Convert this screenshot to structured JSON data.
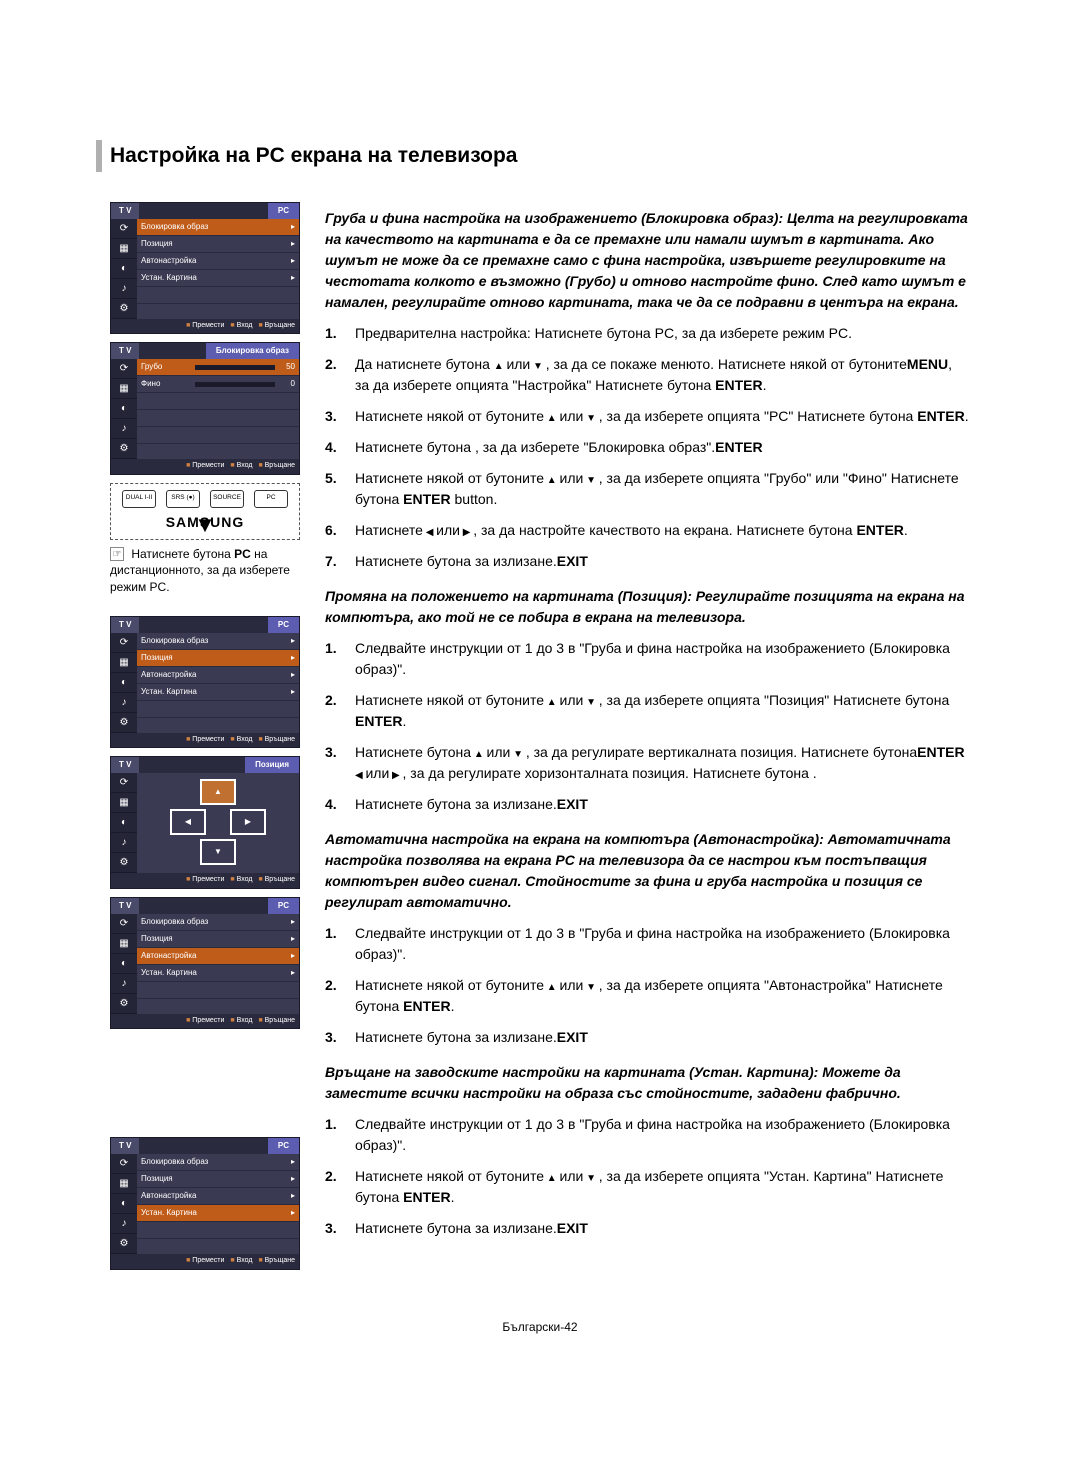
{
  "page": {
    "title": "Настройка на PC екрана на телевизора",
    "footer": "Български-42"
  },
  "tv_menu_common": {
    "tab_tv": "T V",
    "tab_pc": "PC",
    "tab_lock": "Блокировка образ",
    "tab_position": "Позиция",
    "footer_move": "Премести",
    "footer_enter": "Вход",
    "footer_return": "Връщане",
    "icons": [
      "⟳",
      "▦",
      "◐",
      "♪",
      "⚙"
    ]
  },
  "menu1_items": [
    {
      "label": "Блокировка образ",
      "sel": true
    },
    {
      "label": "Позиция",
      "sel": false
    },
    {
      "label": "Автонастройка",
      "sel": false
    },
    {
      "label": "Устан. Картина",
      "sel": false
    }
  ],
  "menu2_sliders": [
    {
      "label": "Грубо",
      "value": 50,
      "pct": 50,
      "sel": true
    },
    {
      "label": "Фино",
      "value": 0,
      "pct": 0,
      "sel": false
    }
  ],
  "menu3_items": [
    {
      "label": "Блокировка образ",
      "sel": false
    },
    {
      "label": "Позиция",
      "sel": true
    },
    {
      "label": "Автонастройка",
      "sel": false
    },
    {
      "label": "Устан. Картина",
      "sel": false
    }
  ],
  "menu5_items": [
    {
      "label": "Блокировка образ",
      "sel": false
    },
    {
      "label": "Позиция",
      "sel": false
    },
    {
      "label": "Автонастройка",
      "sel": true
    },
    {
      "label": "Устан. Картина",
      "sel": false
    }
  ],
  "menu6_items": [
    {
      "label": "Блокировка образ",
      "sel": false
    },
    {
      "label": "Позиция",
      "sel": false
    },
    {
      "label": "Автонастройка",
      "sel": false
    },
    {
      "label": "Устан. Картина",
      "sel": true
    }
  ],
  "remote": {
    "buttons_row1": [
      "DUAL I-II",
      "SRS (●)",
      "SOURCE",
      "PC"
    ],
    "arc_label": "О↕",
    "brand": "SAMSUNG",
    "caption_prefix": "Натиснете бутона ",
    "caption_bold": "PC",
    "caption_suffix": " на дистанционното, за да изберете режим  PC."
  },
  "section1": {
    "lead": "Груба и фина настройка на изображението (Блокировка образ): Целта на регулировката на качеството на картината е да се премахне или намали шумът в картината. Ако шумът не може да се премахне само с фина настройка, извършете регулировките на честотата колкото е възможно (Грубо) и отново настройте фино.  След като шумът е намален, регулирайте отново картината, така че да се подравни в центъра на екрана.",
    "steps": [
      {
        "pre": "Предварителна настройка: Натиснете бутона PC, за да изберете режим PC."
      },
      {
        "pre": "Да натиснете бутона ",
        "b1": "MENU",
        "mid": ", за да се покаже менюто. Натиснете някой от бутоните",
        "arrows": "ud",
        "post": ", за да изберете опцията \"Настройка\" Натиснете бутона ",
        "b2": "ENTER",
        "tail": "."
      },
      {
        "pre": "Натиснете някой от бутоните",
        "arrows": "ud",
        "mid": ", за да изберете опцията \"PC\" Натиснете бутона ",
        "b1": "ENTER",
        "tail": "."
      },
      {
        "pre": "Натиснете бутона ",
        "b1": "ENTER",
        "mid": " , за да изберете \"Блокировка образ\"."
      },
      {
        "pre": "Натиснете някой от бутоните",
        "arrows": "ud",
        "mid": ", за да изберете опцията  \"Грубо\" или \"Фино\" Натиснете бутона  ",
        "b1": "ENTER",
        "tail": " button."
      },
      {
        "pre": "Натиснете",
        "arrows": "lr",
        "mid": ", за да настройте качеството на екрана. Натиснете бутона ",
        "b1": "ENTER",
        "tail": "."
      },
      {
        "pre": "Натиснете бутона ",
        "b1": "EXIT",
        "mid": " за излизане."
      }
    ]
  },
  "section2": {
    "lead": "Промяна на положението на картината (Позиция): Регулирайте позицията на екрана на компютъра, ако той не се побира в екрана на телевизора.",
    "steps": [
      {
        "pre": "Следвайте инструкции от 1 до 3 в \"Груба и фина настройка на изображението (Блокировка образ)\"."
      },
      {
        "pre": "Натиснете някой от бутоните",
        "arrows": "ud",
        "mid": ", за да изберете опцията \"Позиция\" Натиснете бутона ",
        "b1": "ENTER",
        "tail": "."
      },
      {
        "pre": "Натиснете бутона",
        "arrows": "ud",
        "mid": ", за да регулирате вертикалната позиция. Натиснете бутона",
        "arrows2": "lr",
        "post": ", за да регулирате хоризонталната позиция. Натиснете бутона ",
        "b1": "ENTER",
        "tail": "."
      },
      {
        "pre": "Натиснете бутона ",
        "b1": "EXIT",
        "mid": " за излизане."
      }
    ]
  },
  "section3": {
    "lead": "Автоматична настройка на екрана на компютъра (Автонастройка): Автоматичната настройка позволява на екрана PC на телевизора да се настрои към постъпващия компютърен видео сигнал. Стойностите за фина и груба настройка и позиция се регулират автоматично.",
    "steps": [
      {
        "pre": "Следвайте инструкции от 1 до 3 в \"Груба и фина настройка на изображението (Блокировка образ)\"."
      },
      {
        "pre": "Натиснете някой от бутоните",
        "arrows": "ud",
        "mid": ", за да изберете опцията \"Автонастройка\" Натиснете бутона ",
        "b1": "ENTER",
        "tail": "."
      },
      {
        "pre": "Натиснете бутона ",
        "b1": "EXIT",
        "mid": " за излизане."
      }
    ]
  },
  "section4": {
    "lead": "Връщане на заводските настройки на картината (Устан. Картина): Можете да заместите всички настройки на образа със стойностите, зададени фабрично.",
    "steps": [
      {
        "pre": "Следвайте инструкции от 1 до 3 в \"Груба и фина настройка на изображението (Блокировка образ)\"."
      },
      {
        "pre": "Натиснете някой от бутоните",
        "arrows": "ud",
        "mid": ", за да изберете опцията \"Устан. Картина\" Натиснете бутона ",
        "b1": "ENTER",
        "tail": "."
      },
      {
        "pre": "Натиснете бутона ",
        "b1": "EXIT",
        "mid": " за излизане."
      }
    ]
  }
}
